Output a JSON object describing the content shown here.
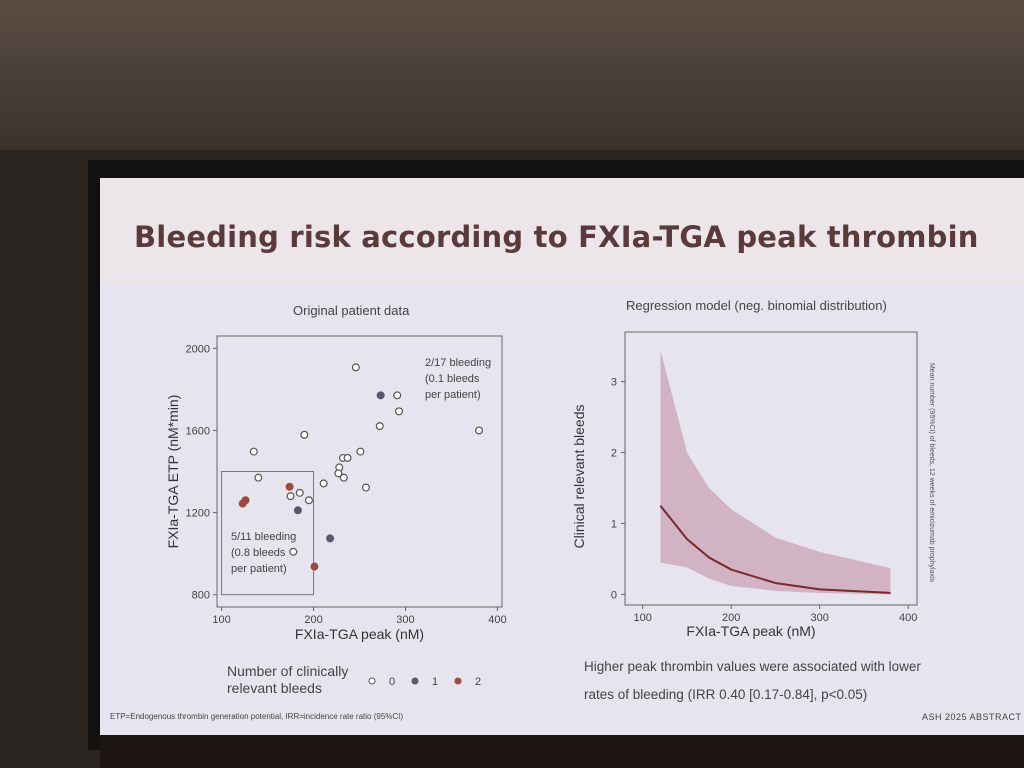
{
  "slide": {
    "title": "Bleeding risk according to FXIa-TGA peak thrombin",
    "left_heading": "Original patient data",
    "right_heading": "Regression model (neg. binomial distribution)",
    "legend_title_line1": "Number of clinically",
    "legend_title_line2": "relevant bleeds",
    "legend_items": [
      "0",
      "1",
      "2"
    ],
    "conclusion_line1": "Higher peak thrombin values were associated with lower",
    "conclusion_line2": "rates of bleeding (IRR 0.40 [0.17-0.84], p<0.05)",
    "footnote": "ETP=Endogenous thrombin generation potential, IRR=incidence rate ratio (95%CI)",
    "source": "ASH 2025 ABSTRACT"
  },
  "colors": {
    "bleeds_0": "#ffffff",
    "bleeds_1": "#5a5870",
    "bleeds_2": "#a0493c",
    "curve": "#7a2a2a",
    "band": "#c9a3b4",
    "title": "#5b3a3c"
  },
  "chart_data": [
    {
      "type": "scatter",
      "title": "Original patient data",
      "xlabel": "FXIa-TGA peak (nM)",
      "ylabel": "FXIa-TGA ETP (nM*min)",
      "xlim": [
        95,
        405
      ],
      "ylim": [
        740,
        2060
      ],
      "xticks": [
        "100",
        "200",
        "300",
        "400"
      ],
      "yticks": [
        "800",
        "1200",
        "1600",
        "2000"
      ],
      "annotations": [
        {
          "lines": [
            "2/17 bleeding",
            "(0.1 bleeds",
            "per patient)"
          ]
        },
        {
          "lines": [
            "5/11 bleeding",
            "(0.8 bleeds",
            "per patient)"
          ]
        }
      ],
      "highlight_box": {
        "x": [
          100,
          200
        ],
        "y": [
          800,
          1400
        ]
      },
      "points": [
        {
          "x": 246,
          "y": 1907,
          "bleeds": 0
        },
        {
          "x": 273,
          "y": 1771,
          "bleeds": 1
        },
        {
          "x": 291,
          "y": 1771,
          "bleeds": 0
        },
        {
          "x": 293,
          "y": 1693,
          "bleeds": 0
        },
        {
          "x": 272,
          "y": 1621,
          "bleeds": 0
        },
        {
          "x": 380,
          "y": 1600,
          "bleeds": 0
        },
        {
          "x": 190,
          "y": 1579,
          "bleeds": 0
        },
        {
          "x": 135,
          "y": 1497,
          "bleeds": 0
        },
        {
          "x": 251,
          "y": 1497,
          "bleeds": 0
        },
        {
          "x": 232,
          "y": 1466,
          "bleeds": 0
        },
        {
          "x": 237,
          "y": 1466,
          "bleeds": 0
        },
        {
          "x": 228,
          "y": 1420,
          "bleeds": 0
        },
        {
          "x": 227,
          "y": 1391,
          "bleeds": 0
        },
        {
          "x": 233,
          "y": 1370,
          "bleeds": 0
        },
        {
          "x": 140,
          "y": 1370,
          "bleeds": 0
        },
        {
          "x": 211,
          "y": 1342,
          "bleeds": 0
        },
        {
          "x": 257,
          "y": 1322,
          "bleeds": 0
        },
        {
          "x": 174,
          "y": 1326,
          "bleeds": 2
        },
        {
          "x": 126,
          "y": 1260,
          "bleeds": 2
        },
        {
          "x": 123,
          "y": 1244,
          "bleeds": 2
        },
        {
          "x": 175,
          "y": 1280,
          "bleeds": 0
        },
        {
          "x": 185,
          "y": 1296,
          "bleeds": 0
        },
        {
          "x": 195,
          "y": 1260,
          "bleeds": 0
        },
        {
          "x": 183,
          "y": 1211,
          "bleeds": 1
        },
        {
          "x": 218,
          "y": 1074,
          "bleeds": 1
        },
        {
          "x": 178,
          "y": 1009,
          "bleeds": 0
        },
        {
          "x": 201,
          "y": 937,
          "bleeds": 2
        }
      ]
    },
    {
      "type": "line",
      "title": "Regression model (neg. binomial distribution)",
      "xlabel": "FXIa-TGA peak (nM)",
      "ylabel": "Clinical relevant bleeds",
      "secondary_label": "Mean number (95%CI) of bleeds, 12 weeks of emicizumab prophylaxis",
      "xlim": [
        80,
        410
      ],
      "ylim": [
        -0.15,
        3.7
      ],
      "xticks": [
        "100",
        "200",
        "300",
        "400"
      ],
      "yticks": [
        "0",
        "1",
        "2",
        "3"
      ],
      "x": [
        120,
        150,
        175,
        200,
        250,
        300,
        380
      ],
      "mean": [
        1.25,
        0.78,
        0.52,
        0.35,
        0.16,
        0.07,
        0.02
      ],
      "upper": [
        3.45,
        2.0,
        1.5,
        1.2,
        0.8,
        0.6,
        0.37
      ],
      "lower": [
        0.45,
        0.38,
        0.22,
        0.12,
        0.05,
        0.02,
        0.0
      ]
    }
  ]
}
